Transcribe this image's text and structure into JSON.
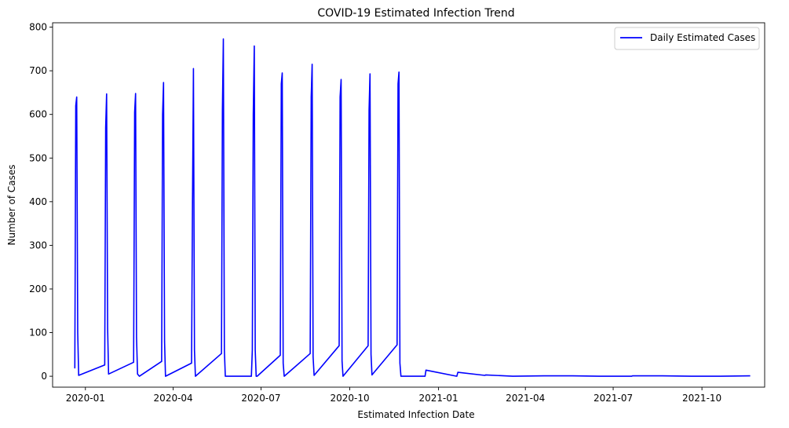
{
  "chart_data": {
    "type": "line",
    "title": "COVID-19 Estimated Infection Trend",
    "xlabel": "Estimated Infection Date",
    "ylabel": "Number of Cases",
    "xlim": [
      "2019-11-28",
      "2021-12-05"
    ],
    "ylim": [
      -25,
      810
    ],
    "xticks": [
      "2020-01",
      "2020-04",
      "2020-07",
      "2020-10",
      "2021-01",
      "2021-04",
      "2021-07",
      "2021-10"
    ],
    "yticks": [
      0,
      100,
      200,
      300,
      400,
      500,
      600,
      700,
      800
    ],
    "grid": false,
    "legend_position": "top-right",
    "color": "#0000ff",
    "series": [
      {
        "name": "Daily Estimated Cases",
        "points": [
          [
            "2019-12-21",
            18
          ],
          [
            "2019-12-22",
            620
          ],
          [
            "2019-12-23",
            640
          ],
          [
            "2019-12-24",
            100
          ],
          [
            "2019-12-25",
            2
          ],
          [
            "2020-01-21",
            26
          ],
          [
            "2020-01-22",
            570
          ],
          [
            "2020-01-23",
            647
          ],
          [
            "2020-01-24",
            110
          ],
          [
            "2020-01-25",
            5
          ],
          [
            "2020-02-20",
            32
          ],
          [
            "2020-02-21",
            605
          ],
          [
            "2020-02-22",
            648
          ],
          [
            "2020-02-23",
            90
          ],
          [
            "2020-02-24",
            5
          ],
          [
            "2020-02-26",
            0
          ],
          [
            "2020-03-20",
            34
          ],
          [
            "2020-03-21",
            600
          ],
          [
            "2020-03-22",
            673
          ],
          [
            "2020-03-23",
            80
          ],
          [
            "2020-03-24",
            0
          ],
          [
            "2020-04-20",
            30
          ],
          [
            "2020-04-21",
            400
          ],
          [
            "2020-04-22",
            705
          ],
          [
            "2020-04-23",
            60
          ],
          [
            "2020-04-24",
            0
          ],
          [
            "2020-05-21",
            52
          ],
          [
            "2020-05-22",
            610
          ],
          [
            "2020-05-23",
            773
          ],
          [
            "2020-05-24",
            60
          ],
          [
            "2020-05-25",
            0
          ],
          [
            "2020-06-21",
            0
          ],
          [
            "2020-06-22",
            60
          ],
          [
            "2020-06-23",
            600
          ],
          [
            "2020-06-24",
            757
          ],
          [
            "2020-06-25",
            60
          ],
          [
            "2020-06-26",
            0
          ],
          [
            "2020-06-27",
            0
          ],
          [
            "2020-07-21",
            48
          ],
          [
            "2020-07-22",
            670
          ],
          [
            "2020-07-23",
            695
          ],
          [
            "2020-07-24",
            30
          ],
          [
            "2020-07-25",
            0
          ],
          [
            "2020-08-21",
            52
          ],
          [
            "2020-08-22",
            640
          ],
          [
            "2020-08-23",
            715
          ],
          [
            "2020-08-24",
            45
          ],
          [
            "2020-08-25",
            2
          ],
          [
            "2020-09-20",
            70
          ],
          [
            "2020-09-21",
            640
          ],
          [
            "2020-09-22",
            680
          ],
          [
            "2020-09-23",
            35
          ],
          [
            "2020-09-24",
            0
          ],
          [
            "2020-10-20",
            70
          ],
          [
            "2020-10-21",
            610
          ],
          [
            "2020-10-22",
            693
          ],
          [
            "2020-10-23",
            50
          ],
          [
            "2020-10-24",
            3
          ],
          [
            "2020-11-19",
            72
          ],
          [
            "2020-11-20",
            670
          ],
          [
            "2020-11-21",
            697
          ],
          [
            "2020-11-22",
            30
          ],
          [
            "2020-11-23",
            0
          ],
          [
            "2020-12-18",
            0
          ],
          [
            "2020-12-19",
            14
          ],
          [
            "2021-01-20",
            0
          ],
          [
            "2021-01-21",
            9
          ],
          [
            "2021-02-18",
            2
          ],
          [
            "2021-02-19",
            3
          ],
          [
            "2021-03-19",
            0
          ],
          [
            "2021-04-20",
            1
          ],
          [
            "2021-05-20",
            1
          ],
          [
            "2021-06-20",
            0
          ],
          [
            "2021-07-20",
            0
          ],
          [
            "2021-07-21",
            1
          ],
          [
            "2021-08-21",
            1
          ],
          [
            "2021-09-20",
            0
          ],
          [
            "2021-10-20",
            0
          ],
          [
            "2021-11-20",
            1
          ]
        ]
      }
    ]
  }
}
